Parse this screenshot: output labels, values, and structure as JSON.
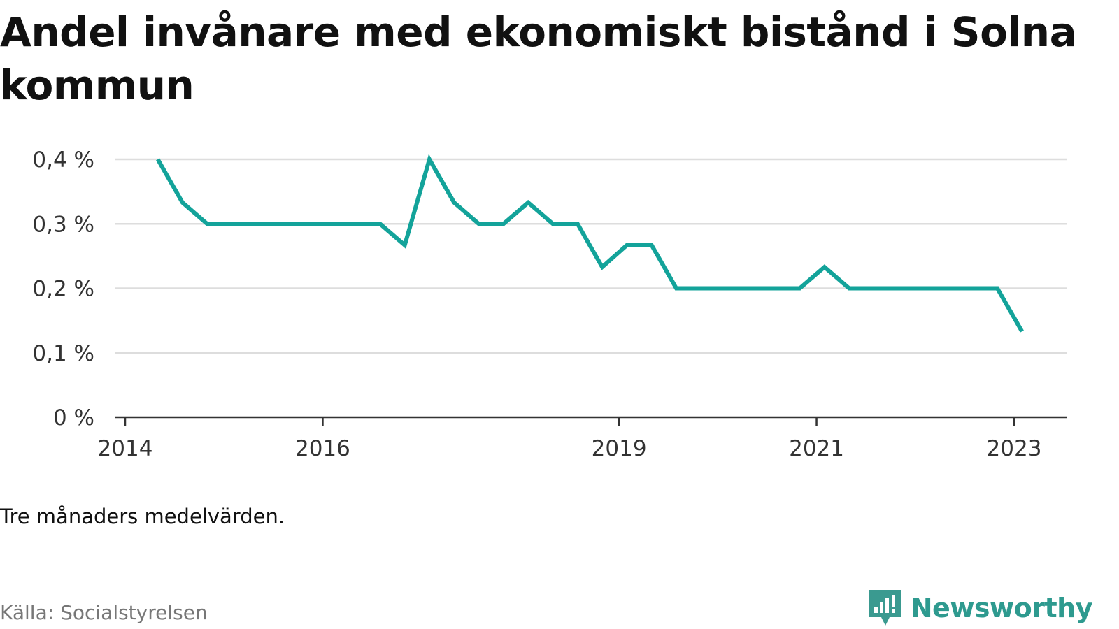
{
  "title": "Andel invånare med ekonomiskt bistånd i Solna kommun",
  "note": "Tre månaders medelvärden.",
  "source": "Källa: Socialstyrelsen",
  "brand": {
    "name": "Newsworthy",
    "icon": "bar-chart-speech-bubble-icon",
    "color": "#3a9a90"
  },
  "colors": {
    "line": "#13a39a",
    "grid": "#dddddd",
    "axis": "#333333"
  },
  "chart_data": {
    "type": "line",
    "title": "Andel invånare med ekonomiskt bistånd i Solna kommun",
    "xlabel": "",
    "ylabel": "",
    "ylim": [
      0,
      0.4
    ],
    "yticks": [
      0,
      0.1,
      0.2,
      0.3,
      0.4
    ],
    "ytick_labels": [
      "0 %",
      "0,1 %",
      "0,2 %",
      "0,3 %",
      "0,4 %"
    ],
    "xlim": [
      2014,
      2024
    ],
    "xticks": [
      2014,
      2016,
      2019,
      2021,
      2023
    ],
    "xtick_labels": [
      "2014",
      "2016",
      "2019",
      "2021",
      "2023"
    ],
    "grid": true,
    "legend": "none",
    "series": [
      {
        "x": [
          2014.33,
          2014.58,
          2014.83,
          2015.08,
          2015.33,
          2015.58,
          2015.83,
          2016.08,
          2016.33,
          2016.58,
          2016.83,
          2017.08,
          2017.33,
          2017.58,
          2017.83,
          2018.08,
          2018.33,
          2018.58,
          2018.83,
          2019.08,
          2019.33,
          2019.58,
          2019.83,
          2020.08,
          2020.33,
          2020.58,
          2020.83,
          2021.08,
          2021.33,
          2021.58,
          2021.83,
          2022.08,
          2022.33,
          2022.58,
          2022.83,
          2023.08
        ],
        "values": [
          0.4,
          0.333,
          0.3,
          0.3,
          0.3,
          0.3,
          0.3,
          0.3,
          0.3,
          0.3,
          0.267,
          0.4,
          0.333,
          0.3,
          0.3,
          0.333,
          0.3,
          0.3,
          0.233,
          0.267,
          0.267,
          0.2,
          0.2,
          0.2,
          0.2,
          0.2,
          0.2,
          0.233,
          0.2,
          0.2,
          0.2,
          0.2,
          0.2,
          0.2,
          0.2,
          0.133
        ]
      }
    ]
  }
}
